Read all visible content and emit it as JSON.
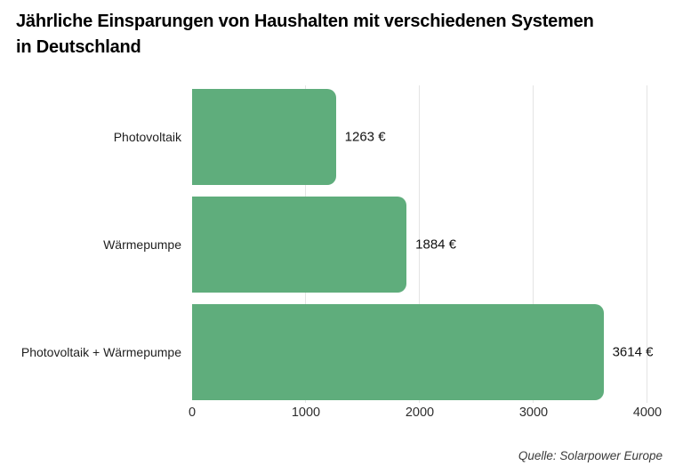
{
  "title": {
    "line1": "Jährliche Einsparungen von Haushalten mit verschiedenen Systemen",
    "line2": "in Deutschland"
  },
  "source": "Quelle: Solarpower Europe",
  "colors": {
    "bar": "#5fad7c",
    "gridline": "#e4e4e4",
    "title": "#000000",
    "category_label": "#1f1f1f",
    "value_label": "#111111",
    "tick_label": "#2e2e2e",
    "source_text": "#3a3a3a",
    "background": "#ffffff"
  },
  "chart_data": {
    "type": "bar",
    "orientation": "horizontal",
    "title": "Jährliche Einsparungen von Haushalten mit verschiedenen Systemen in Deutschland",
    "categories": [
      "Photovoltaik",
      "Wärmepumpe",
      "Photovoltaik + Wärmepumpe"
    ],
    "values": [
      1263,
      1884,
      3614
    ],
    "value_labels": [
      "1263 €",
      "1884 €",
      "3614 €"
    ],
    "xlabel": "",
    "ylabel": "",
    "xlim": [
      0,
      4000
    ],
    "xticks": [
      0,
      1000,
      2000,
      3000,
      4000
    ],
    "xtick_labels": [
      "0",
      "1000",
      "2000",
      "3000",
      "4000"
    ],
    "grid": "vertical-gridlines-at-ticks-except-zero",
    "legend": "none",
    "source": "Quelle: Solarpower Europe"
  }
}
